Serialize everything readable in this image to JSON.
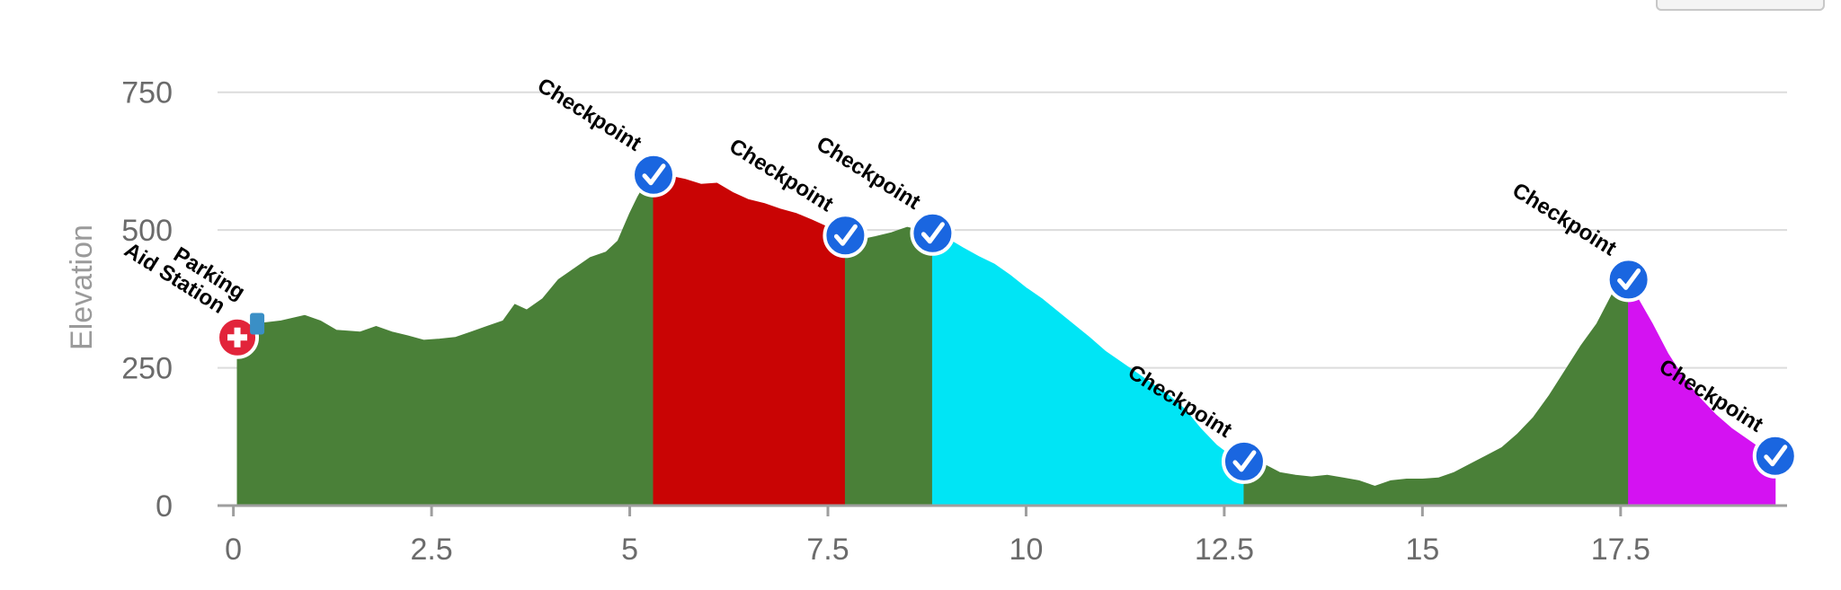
{
  "chart_data": {
    "type": "area",
    "title": "",
    "xlabel": "",
    "ylabel": "Elevation",
    "xlim": [
      -0.2,
      19.6
    ],
    "ylim": [
      0,
      800
    ],
    "xticks": [
      "0",
      "2.5",
      "5",
      "7.5",
      "10",
      "12.5",
      "15",
      "17.5"
    ],
    "yticks": [
      "0",
      "250",
      "500",
      "750"
    ],
    "grid": "horizontal",
    "profile": [
      [
        0.05,
        305
      ],
      [
        0.3,
        330
      ],
      [
        0.6,
        335
      ],
      [
        0.9,
        345
      ],
      [
        1.1,
        335
      ],
      [
        1.3,
        318
      ],
      [
        1.6,
        315
      ],
      [
        1.8,
        325
      ],
      [
        2.0,
        315
      ],
      [
        2.2,
        308
      ],
      [
        2.4,
        300
      ],
      [
        2.6,
        302
      ],
      [
        2.8,
        305
      ],
      [
        3.0,
        315
      ],
      [
        3.2,
        325
      ],
      [
        3.4,
        335
      ],
      [
        3.55,
        365
      ],
      [
        3.7,
        355
      ],
      [
        3.9,
        375
      ],
      [
        4.1,
        410
      ],
      [
        4.3,
        430
      ],
      [
        4.5,
        450
      ],
      [
        4.7,
        460
      ],
      [
        4.85,
        480
      ],
      [
        5.0,
        530
      ],
      [
        5.1,
        560
      ],
      [
        5.2,
        585
      ],
      [
        5.3,
        600
      ],
      [
        5.5,
        598
      ],
      [
        5.7,
        592
      ],
      [
        5.9,
        583
      ],
      [
        6.1,
        585
      ],
      [
        6.3,
        568
      ],
      [
        6.5,
        555
      ],
      [
        6.7,
        548
      ],
      [
        6.9,
        538
      ],
      [
        7.1,
        530
      ],
      [
        7.3,
        518
      ],
      [
        7.5,
        505
      ],
      [
        7.7,
        490
      ],
      [
        7.9,
        482
      ],
      [
        8.1,
        488
      ],
      [
        8.3,
        495
      ],
      [
        8.5,
        505
      ],
      [
        8.7,
        498
      ],
      [
        8.8,
        494
      ],
      [
        9.0,
        485
      ],
      [
        9.2,
        468
      ],
      [
        9.4,
        452
      ],
      [
        9.6,
        438
      ],
      [
        9.8,
        418
      ],
      [
        10.0,
        395
      ],
      [
        10.2,
        375
      ],
      [
        10.5,
        340
      ],
      [
        10.8,
        305
      ],
      [
        11.0,
        280
      ],
      [
        11.2,
        260
      ],
      [
        11.5,
        230
      ],
      [
        11.8,
        200
      ],
      [
        12.0,
        175
      ],
      [
        12.2,
        140
      ],
      [
        12.4,
        110
      ],
      [
        12.6,
        88
      ],
      [
        12.8,
        80
      ],
      [
        13.0,
        75
      ],
      [
        13.2,
        60
      ],
      [
        13.4,
        55
      ],
      [
        13.6,
        52
      ],
      [
        13.8,
        55
      ],
      [
        14.0,
        50
      ],
      [
        14.2,
        45
      ],
      [
        14.4,
        35
      ],
      [
        14.6,
        45
      ],
      [
        14.8,
        48
      ],
      [
        15.0,
        48
      ],
      [
        15.2,
        50
      ],
      [
        15.4,
        60
      ],
      [
        15.6,
        75
      ],
      [
        15.8,
        90
      ],
      [
        16.0,
        105
      ],
      [
        16.2,
        130
      ],
      [
        16.4,
        160
      ],
      [
        16.6,
        200
      ],
      [
        16.8,
        245
      ],
      [
        17.0,
        290
      ],
      [
        17.2,
        330
      ],
      [
        17.4,
        385
      ],
      [
        17.55,
        410
      ],
      [
        17.7,
        380
      ],
      [
        17.9,
        330
      ],
      [
        18.1,
        275
      ],
      [
        18.3,
        230
      ],
      [
        18.5,
        195
      ],
      [
        18.7,
        165
      ],
      [
        18.9,
        140
      ],
      [
        19.1,
        120
      ],
      [
        19.3,
        100
      ],
      [
        19.45,
        90
      ]
    ],
    "segments": [
      {
        "start": 0.05,
        "end": 5.3,
        "color": "#4a8038"
      },
      {
        "start": 5.3,
        "end": 7.72,
        "color": "#c90404"
      },
      {
        "start": 7.72,
        "end": 8.82,
        "color": "#4a8038"
      },
      {
        "start": 8.82,
        "end": 12.75,
        "color": "#00e5f5"
      },
      {
        "start": 12.75,
        "end": 17.6,
        "color": "#4a8038"
      },
      {
        "start": 17.6,
        "end": 19.45,
        "color": "#d412f2"
      }
    ],
    "markers": [
      {
        "x": 0.05,
        "y": 305,
        "kind": "aid",
        "label": "Aid Station"
      },
      {
        "x": 0.3,
        "y": 330,
        "kind": "parking",
        "label": "Parking"
      },
      {
        "x": 5.3,
        "y": 600,
        "kind": "checkpoint",
        "label": "Checkpoint"
      },
      {
        "x": 7.72,
        "y": 490,
        "kind": "checkpoint",
        "label": "Checkpoint"
      },
      {
        "x": 8.82,
        "y": 494,
        "kind": "checkpoint",
        "label": "Checkpoint"
      },
      {
        "x": 12.75,
        "y": 80,
        "kind": "checkpoint",
        "label": "Checkpoint"
      },
      {
        "x": 17.6,
        "y": 410,
        "kind": "checkpoint",
        "label": "Checkpoint"
      },
      {
        "x": 19.45,
        "y": 90,
        "kind": "checkpoint",
        "label": "Checkpoint"
      }
    ],
    "colors": {
      "checkpoint_marker": "#1a66e0",
      "aid_marker": "#e2243a",
      "gridline": "#dcdcdc",
      "axis": "#9e9e9e"
    }
  }
}
